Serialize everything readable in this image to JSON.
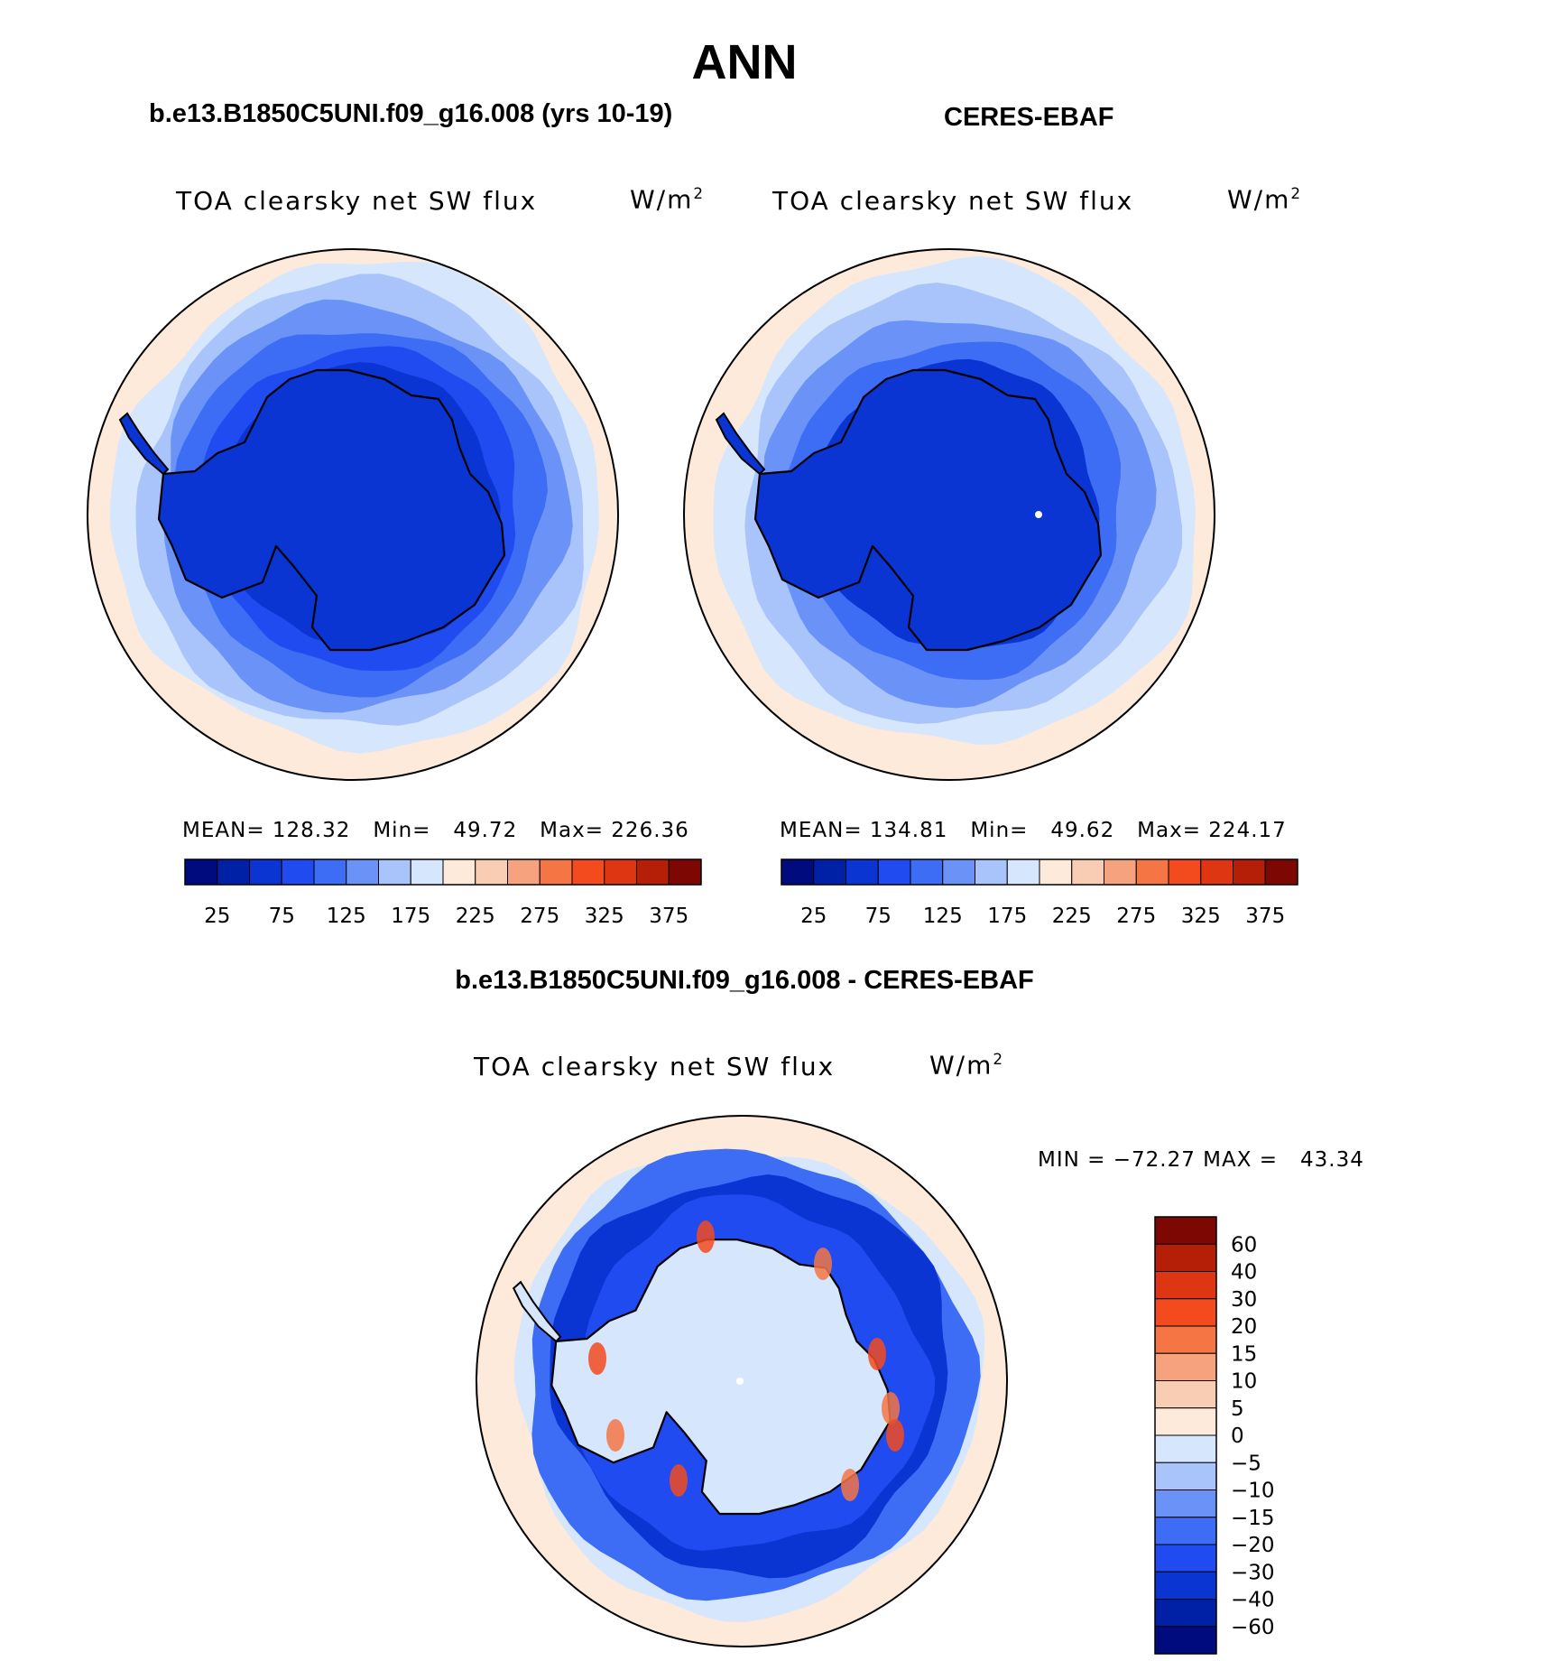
{
  "page": {
    "title": "ANN"
  },
  "colors": {
    "absolute": [
      "#000c7d",
      "#0021a6",
      "#0a35d2",
      "#1f4bf0",
      "#3d6cf5",
      "#6b93f7",
      "#a8c4fb",
      "#d6e6fc",
      "#fdeadb",
      "#f9cdb4",
      "#f6a27f",
      "#f57545",
      "#f34a1e",
      "#de3512",
      "#b51e07",
      "#7d0703"
    ],
    "difference": [
      "#000c7d",
      "#0021a6",
      "#0a35d2",
      "#1f4bf0",
      "#3d6cf5",
      "#6b93f7",
      "#a8c4fb",
      "#d6e6fc",
      "#fdeadb",
      "#f9cdb4",
      "#f6a27f",
      "#f57545",
      "#f34a1e",
      "#de3512",
      "#b51e07",
      "#7d0703"
    ],
    "land_outline": "#000000"
  },
  "chart_data": [
    {
      "type": "heatmap",
      "panel": "left",
      "case_title": "b.e13.B1850C5UNI.f09_g16.008 (yrs 10-19)",
      "variable": "TOA clearsky net SW flux",
      "units": "W/m",
      "units_exp": "2",
      "stats": {
        "mean_label": "MEAN=",
        "mean": "128.32",
        "min_label": "Min=",
        "min": "49.72",
        "max_label": "Max=",
        "max": "226.36"
      },
      "levels": [
        25,
        50,
        75,
        100,
        125,
        150,
        175,
        200,
        225,
        250,
        275,
        300,
        325,
        350,
        375
      ],
      "tick_labels": [
        "25",
        "75",
        "125",
        "175",
        "225",
        "275",
        "325",
        "375"
      ],
      "rings_outer_to_inner": [
        8,
        7,
        6,
        5,
        4,
        3,
        2
      ]
    },
    {
      "type": "heatmap",
      "panel": "right",
      "case_title": "CERES-EBAF",
      "variable": "TOA clearsky net SW flux",
      "units": "W/m",
      "units_exp": "2",
      "stats": {
        "mean_label": "MEAN=",
        "mean": "134.81",
        "min_label": "Min=",
        "min": "49.62",
        "max_label": "Max=",
        "max": "224.17"
      },
      "levels": [
        25,
        50,
        75,
        100,
        125,
        150,
        175,
        200,
        225,
        250,
        275,
        300,
        325,
        350,
        375
      ],
      "tick_labels": [
        "25",
        "75",
        "125",
        "175",
        "225",
        "275",
        "325",
        "375"
      ],
      "rings_outer_to_inner": [
        8,
        7,
        6,
        5,
        4,
        2
      ]
    },
    {
      "type": "heatmap",
      "panel": "difference",
      "case_title": "b.e13.B1850C5UNI.f09_g16.008 - CERES-EBAF",
      "variable": "TOA clearsky net SW flux",
      "units": "W/m",
      "units_exp": "2",
      "stats_text": "MIN = −72.27 MAX =   43.34",
      "levels": [
        60,
        40,
        30,
        20,
        15,
        10,
        5,
        0,
        -5,
        -10,
        -15,
        -20,
        -30,
        -40,
        -60
      ],
      "tick_labels": [
        "60",
        "40",
        "30",
        "20",
        "15",
        "10",
        "5",
        "0",
        "−5",
        "−10",
        "−15",
        "−20",
        "−30",
        "−40",
        "−60"
      ]
    }
  ]
}
